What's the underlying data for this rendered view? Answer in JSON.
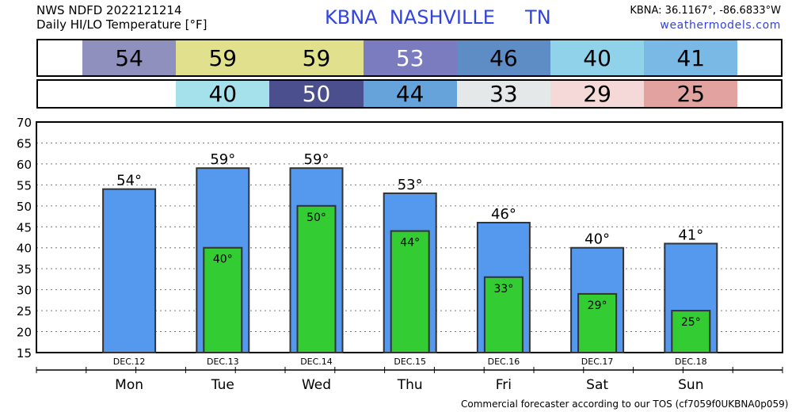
{
  "header": {
    "line1": "NWS NDFD 2022121214",
    "line2": "Daily HI/LO Temperature [°F]",
    "title": "KBNA  NASHVILLE     TN",
    "coords": "KBNA: 36.1167°, -86.6833°W",
    "site": "weathermodels.com"
  },
  "footer": "Commercial forecaster according to our TOS (cf7059f0UKBNA0p059)",
  "colors": {
    "hi_bar": "#5599ee",
    "lo_bar": "#33cc33"
  },
  "strip_hi": [
    {
      "text": "54",
      "bg": "#9090bf",
      "fg": "#000"
    },
    {
      "text": "59",
      "bg": "#e1e18d",
      "fg": "#000"
    },
    {
      "text": "59",
      "bg": "#e1e18d",
      "fg": "#000"
    },
    {
      "text": "53",
      "bg": "#7b7bbf",
      "fg": "#ffffff"
    },
    {
      "text": "46",
      "bg": "#5e8cc4",
      "fg": "#000"
    },
    {
      "text": "40",
      "bg": "#8fd2ea",
      "fg": "#000"
    },
    {
      "text": "41",
      "bg": "#7ab8e5",
      "fg": "#000"
    }
  ],
  "strip_lo": [
    {
      "text": "",
      "bg": "#ffffff",
      "fg": "#000"
    },
    {
      "text": "40",
      "bg": "#a5e1ea",
      "fg": "#000"
    },
    {
      "text": "50",
      "bg": "#4b4f8e",
      "fg": "#ffffff"
    },
    {
      "text": "44",
      "bg": "#66a3da",
      "fg": "#000"
    },
    {
      "text": "33",
      "bg": "#e5e8e8",
      "fg": "#000"
    },
    {
      "text": "29",
      "bg": "#f5d8d8",
      "fg": "#000"
    },
    {
      "text": "25",
      "bg": "#e2a3a0",
      "fg": "#000"
    }
  ],
  "chart_data": {
    "type": "bar",
    "categories": [
      "Mon",
      "Tue",
      "Wed",
      "Thu",
      "Fri",
      "Sat",
      "Sun"
    ],
    "dates": [
      "DEC.12",
      "DEC.13",
      "DEC.14",
      "DEC.15",
      "DEC.16",
      "DEC.17",
      "DEC.18"
    ],
    "series": [
      {
        "name": "HI",
        "values": [
          54,
          59,
          59,
          53,
          46,
          40,
          41
        ],
        "labels": [
          "54°",
          "59°",
          "59°",
          "53°",
          "46°",
          "40°",
          "41°"
        ]
      },
      {
        "name": "LO",
        "values": [
          null,
          40,
          50,
          44,
          33,
          29,
          25
        ],
        "labels": [
          "",
          "40°",
          "50°",
          "44°",
          "33°",
          "29°",
          "25°"
        ]
      }
    ],
    "ylim": [
      15,
      70
    ],
    "yticks": [
      "15",
      "20",
      "25",
      "30",
      "35",
      "40",
      "45",
      "50",
      "55",
      "60",
      "65",
      "70"
    ],
    "grid": true
  }
}
